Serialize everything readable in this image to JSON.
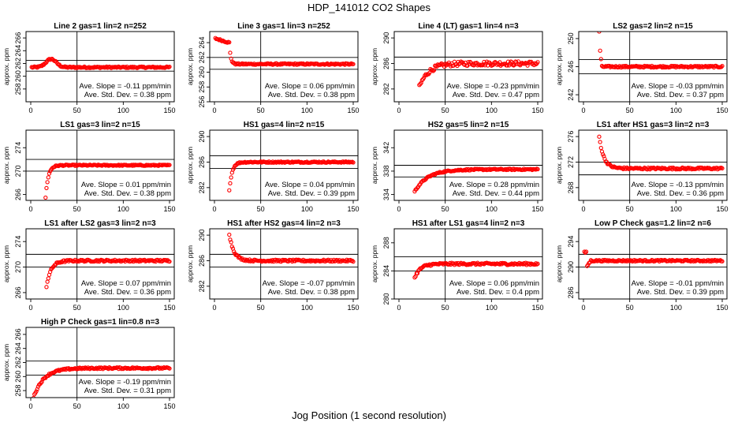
{
  "figure": {
    "title": "HDP_141012  CO2 Shapes",
    "xlabel": "Jog Position (1 second resolution)"
  },
  "chart_data": [
    {
      "type": "scatter",
      "title": "Line 2 gas=1 lin=2 n=252",
      "ylabel": "approx. ppm",
      "xlim": [
        0,
        150
      ],
      "ylim": [
        256,
        267
      ],
      "xticks": [
        0,
        50,
        100,
        150
      ],
      "yticks": [
        258,
        260,
        262,
        264,
        266
      ],
      "hlines": [
        262.5,
        260.8
      ],
      "vline": 50,
      "slope_text": "Ave. Slope = -0.11  ppm/min",
      "std_text": "Ave. Std. Dev. = 0.38  ppm",
      "series": [
        {
          "shape": "bump",
          "x_start": 1,
          "x_end": 150,
          "y_start": 261.3,
          "y_end": 261.4,
          "peak_x": 22,
          "peak_y": 262.7,
          "noise": 0.12
        }
      ]
    },
    {
      "type": "scatter",
      "title": "Line 3 gas=1 lin=3 n=252",
      "ylabel": "approx. ppm",
      "xlim": [
        0,
        150
      ],
      "ylim": [
        256,
        265.5
      ],
      "xticks": [
        0,
        50,
        100,
        150
      ],
      "yticks": [
        256,
        258,
        260,
        262,
        264
      ],
      "hlines": [
        262.0,
        260.4
      ],
      "vline": 50,
      "slope_text": "Ave. Slope = 0.06  ppm/min",
      "std_text": "Ave. Std. Dev. = 0.38  ppm",
      "series": [
        {
          "shape": "drop",
          "x_start": 1,
          "x_end": 150,
          "y_start": 264.6,
          "y_end": 261.1,
          "drop_x": 16,
          "noise": 0.1
        }
      ]
    },
    {
      "type": "scatter",
      "title": "Line 4 (LT) gas=1 lin=4 n=3",
      "ylabel": "approx. ppm",
      "xlim": [
        0,
        150
      ],
      "ylim": [
        280,
        291
      ],
      "xticks": [
        0,
        50,
        100,
        150
      ],
      "yticks": [
        282,
        286,
        290
      ],
      "hlines": [
        287.0,
        285.0
      ],
      "vline": 50,
      "slope_text": "Ave. Slope = -0.23  ppm/min",
      "std_text": "Ave. Std. Dev. = 0.47  ppm",
      "series": [
        {
          "shape": "rise",
          "x_start": 22,
          "x_end": 150,
          "y_start": 282.3,
          "y_end": 286.0,
          "tau": 10,
          "noise": 0.35
        }
      ]
    },
    {
      "type": "scatter",
      "title": "LS2 gas=2 lin=2 n=15",
      "ylabel": "approx. ppm",
      "xlim": [
        0,
        150
      ],
      "ylim": [
        241,
        251
      ],
      "xticks": [
        0,
        50,
        100,
        150
      ],
      "yticks": [
        242,
        246,
        250
      ],
      "hlines": [
        247.0,
        245.0
      ],
      "vline": 50,
      "slope_text": "Ave. Slope = -0.03  ppm/min",
      "std_text": "Ave. Std. Dev. = 0.37  ppm",
      "series": [
        {
          "shape": "spike",
          "x_start": 17,
          "x_end": 150,
          "y_start": 251,
          "y_end": 246.0,
          "noise": 0.12
        }
      ]
    },
    {
      "type": "scatter",
      "title": "LS1 gas=3 lin=2 n=15",
      "ylabel": "approx. ppm",
      "xlim": [
        0,
        150
      ],
      "ylim": [
        265,
        277
      ],
      "xticks": [
        0,
        50,
        100,
        150
      ],
      "yticks": [
        266,
        270,
        274
      ],
      "hlines": [
        272.0,
        270.0
      ],
      "vline": 50,
      "slope_text": "Ave. Slope = 0.01  ppm/min",
      "std_text": "Ave. Std. Dev. = 0.38  ppm",
      "series": [
        {
          "shape": "rise",
          "x_start": 16,
          "x_end": 150,
          "y_start": 265.5,
          "y_end": 271.0,
          "tau": 3,
          "noise": 0.1
        }
      ]
    },
    {
      "type": "scatter",
      "title": "HS1 gas=4 lin=2 n=15",
      "ylabel": "approx. ppm",
      "xlim": [
        0,
        150
      ],
      "ylim": [
        280,
        291
      ],
      "xticks": [
        0,
        50,
        100,
        150
      ],
      "yticks": [
        282,
        286,
        290
      ],
      "hlines": [
        287.0,
        285.0
      ],
      "vline": 50,
      "slope_text": "Ave. Slope = 0.04  ppm/min",
      "std_text": "Ave. Std. Dev. = 0.39  ppm",
      "series": [
        {
          "shape": "rise",
          "x_start": 16,
          "x_end": 150,
          "y_start": 281.5,
          "y_end": 286.0,
          "tau": 3,
          "noise": 0.1
        }
      ]
    },
    {
      "type": "scatter",
      "title": "HS2 gas=5 lin=2 n=15",
      "ylabel": "approx. ppm",
      "xlim": [
        0,
        150
      ],
      "ylim": [
        333,
        345
      ],
      "xticks": [
        0,
        50,
        100,
        150
      ],
      "yticks": [
        334,
        338,
        342
      ],
      "hlines": [
        339.0,
        337.0
      ],
      "vline": 50,
      "slope_text": "Ave. Slope = 0.28  ppm/min",
      "std_text": "Ave. Std. Dev. = 0.44  ppm",
      "series": [
        {
          "shape": "rise",
          "x_start": 17,
          "x_end": 150,
          "y_start": 334.5,
          "y_end": 338.3,
          "tau": 14,
          "noise": 0.12
        }
      ]
    },
    {
      "type": "scatter",
      "title": "LS1 after HS1 gas=3 lin=2 n=3",
      "ylabel": "approx. ppm",
      "xlim": [
        0,
        150
      ],
      "ylim": [
        266,
        277
      ],
      "xticks": [
        0,
        50,
        100,
        150
      ],
      "yticks": [
        268,
        272,
        276
      ],
      "hlines": [
        272.0,
        270.0
      ],
      "vline": 50,
      "slope_text": "Ave. Slope = -0.13  ppm/min",
      "std_text": "Ave. Std. Dev. = 0.36  ppm",
      "series": [
        {
          "shape": "decay",
          "x_start": 17,
          "x_end": 150,
          "y_start": 276,
          "y_end": 271.0,
          "tau": 5,
          "noise": 0.15
        }
      ]
    },
    {
      "type": "scatter",
      "title": "LS1 after LS2 gas=3 lin=2 n=3",
      "ylabel": "approx. ppm",
      "xlim": [
        0,
        150
      ],
      "ylim": [
        265,
        276
      ],
      "xticks": [
        0,
        50,
        100,
        150
      ],
      "yticks": [
        266,
        270,
        274
      ],
      "hlines": [
        272.0,
        270.0
      ],
      "vline": 50,
      "slope_text": "Ave. Slope = 0.07  ppm/min",
      "std_text": "Ave. Std. Dev. = 0.36  ppm",
      "series": [
        {
          "shape": "rise",
          "x_start": 17,
          "x_end": 150,
          "y_start": 267.0,
          "y_end": 271.0,
          "tau": 5,
          "noise": 0.15
        }
      ]
    },
    {
      "type": "scatter",
      "title": "HS1 after HS2 gas=4 lin=2 n=3",
      "ylabel": "approx. ppm",
      "xlim": [
        0,
        150
      ],
      "ylim": [
        280,
        291
      ],
      "xticks": [
        0,
        50,
        100,
        150
      ],
      "yticks": [
        282,
        286,
        290
      ],
      "hlines": [
        287.0,
        285.0
      ],
      "vline": 50,
      "slope_text": "Ave. Slope = -0.07  ppm/min",
      "std_text": "Ave. Std. Dev. = 0.38  ppm",
      "series": [
        {
          "shape": "decay",
          "x_start": 16,
          "x_end": 150,
          "y_start": 290.2,
          "y_end": 286.0,
          "tau": 5,
          "noise": 0.15
        }
      ]
    },
    {
      "type": "scatter",
      "title": "HS1 after LS1 gas=4 lin=2 n=3",
      "ylabel": "approx. ppm",
      "xlim": [
        0,
        150
      ],
      "ylim": [
        280,
        290
      ],
      "xticks": [
        0,
        50,
        100,
        150
      ],
      "yticks": [
        280,
        284,
        288
      ],
      "hlines": [
        286.0,
        284.0
      ],
      "vline": 50,
      "slope_text": "Ave. Slope = 0.06  ppm/min",
      "std_text": "Ave. Std. Dev. = 0.4  ppm",
      "series": [
        {
          "shape": "rise",
          "x_start": 17,
          "x_end": 150,
          "y_start": 283.0,
          "y_end": 285.0,
          "tau": 6,
          "noise": 0.15
        }
      ]
    },
    {
      "type": "scatter",
      "title": "Low P Check gas=1.2 lin=2 n=6",
      "ylabel": "approx. ppm",
      "xlim": [
        0,
        150
      ],
      "ylim": [
        285,
        296
      ],
      "xticks": [
        0,
        50,
        100,
        150
      ],
      "yticks": [
        286,
        290,
        294
      ],
      "hlines": [
        292.0,
        290.0
      ],
      "vline": 50,
      "slope_text": "Ave. Slope = -0.01  ppm/min",
      "std_text": "Ave. Std. Dev. = 0.39  ppm",
      "series": [
        {
          "shape": "dip",
          "x_start": 1,
          "x_end": 150,
          "y_start": 292.3,
          "y_end": 291.0,
          "noise": 0.12
        }
      ]
    },
    {
      "type": "scatter",
      "title": "High P Check gas=1 lin=0.8 n=3",
      "ylabel": "approx. ppm",
      "xlim": [
        0,
        150
      ],
      "ylim": [
        257,
        267
      ],
      "xticks": [
        0,
        50,
        100,
        150
      ],
      "yticks": [
        258,
        260,
        262,
        264,
        266
      ],
      "hlines": [
        262.2,
        260.2
      ],
      "vline": 50,
      "slope_text": "Ave. Slope = -0.19  ppm/min",
      "std_text": "Ave. Std. Dev. = 0.31  ppm",
      "series": [
        {
          "shape": "rise",
          "x_start": 3,
          "x_end": 150,
          "y_start": 257.0,
          "y_end": 261.2,
          "tau": 11,
          "noise": 0.12
        }
      ]
    }
  ],
  "colors": {
    "points": "#ff0000",
    "axes": "#000000",
    "background": "#ffffff"
  }
}
